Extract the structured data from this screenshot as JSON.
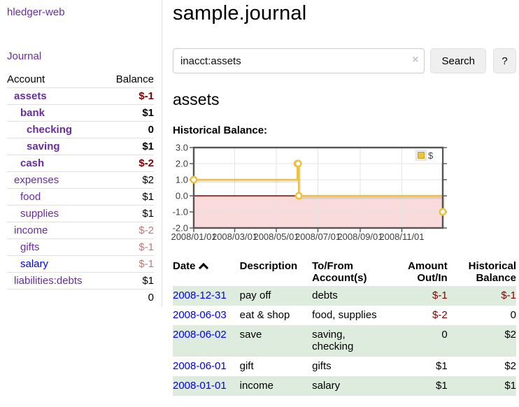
{
  "app": {
    "brand": "hledger-web"
  },
  "sidebar": {
    "journal_label": "Journal",
    "accounts_table": {
      "headers": [
        "Account",
        "Balance"
      ],
      "rows": [
        {
          "name": "assets",
          "balance": "$-1",
          "indent": 1,
          "bold": true,
          "balance_class": "neg"
        },
        {
          "name": "bank",
          "balance": "$1",
          "indent": 2,
          "bold": true,
          "balance_class": ""
        },
        {
          "name": "checking",
          "balance": "0",
          "indent": 3,
          "bold": true,
          "balance_class": ""
        },
        {
          "name": "saving",
          "balance": "$1",
          "indent": 3,
          "bold": true,
          "balance_class": ""
        },
        {
          "name": "cash",
          "balance": "$-2",
          "indent": 2,
          "bold": true,
          "balance_class": "neg"
        },
        {
          "name": "expenses",
          "balance": "$2",
          "indent": 1,
          "bold": false,
          "balance_class": ""
        },
        {
          "name": "food",
          "balance": "$1",
          "indent": 2,
          "bold": false,
          "balance_class": ""
        },
        {
          "name": "supplies",
          "balance": "$1",
          "indent": 2,
          "bold": false,
          "balance_class": ""
        },
        {
          "name": "income",
          "balance": "$-2",
          "indent": 1,
          "bold": false,
          "balance_class": "neg-muted"
        },
        {
          "name": "gifts",
          "balance": "$-1",
          "indent": 2,
          "bold": false,
          "balance_class": "neg-muted"
        },
        {
          "name": "salary",
          "balance": "$-1",
          "indent": 2,
          "bold": false,
          "balance_class": "neg-muted",
          "link_blue": true
        },
        {
          "name": "liabilities:debts",
          "balance": "$1",
          "indent": 1,
          "bold": false,
          "balance_class": ""
        }
      ],
      "total": "0"
    }
  },
  "main": {
    "title": "sample.journal",
    "search": {
      "value": "inacct:assets",
      "clear_icon": "×",
      "button_label": "Search",
      "help_label": "?"
    },
    "account_heading": "assets",
    "chart_label": "Historical Balance:"
  },
  "chart_data": {
    "type": "line",
    "step": true,
    "title": "Historical Balance",
    "series": [
      {
        "name": "$",
        "points": [
          [
            "2008-01-01",
            1
          ],
          [
            "2008-06-01",
            2
          ],
          [
            "2008-06-02",
            2
          ],
          [
            "2008-06-03",
            0
          ],
          [
            "2008-12-31",
            -1
          ]
        ]
      }
    ],
    "x_ticks": [
      "2008/01/01",
      "2008/03/01",
      "2008/05/01",
      "2008/07/01",
      "2008/09/01",
      "2008/11/01"
    ],
    "y_ticks": [
      "3.0",
      "2.0",
      "1.0",
      "0.0",
      "-1.0",
      "-2.0"
    ],
    "ylim": [
      -2,
      3
    ],
    "xlim_days": [
      0,
      365
    ],
    "legend": [
      "$"
    ],
    "legend_position": "top-right",
    "grid": true
  },
  "register": {
    "headers": [
      "Date",
      "Description",
      "To/From Account(s)",
      "Amount Out/In",
      "Historical Balance"
    ],
    "sort_icon": "chevron-up",
    "rows": [
      {
        "date": "2008-12-31",
        "description": "pay off",
        "accounts": "debts",
        "amount": "$-1",
        "amount_neg": true,
        "balance": "$-1",
        "balance_neg": true
      },
      {
        "date": "2008-06-03",
        "description": "eat & shop",
        "accounts": "food, supplies",
        "amount": "$-2",
        "amount_neg": true,
        "balance": "0",
        "balance_neg": false
      },
      {
        "date": "2008-06-02",
        "description": "save",
        "accounts": "saving, checking",
        "amount": "0",
        "amount_neg": false,
        "balance": "$2",
        "balance_neg": false
      },
      {
        "date": "2008-06-01",
        "description": "gift",
        "accounts": "gifts",
        "amount": "$1",
        "amount_neg": false,
        "balance": "$2",
        "balance_neg": false
      },
      {
        "date": "2008-01-01",
        "description": "income",
        "accounts": "salary",
        "amount": "$1",
        "amount_neg": false,
        "balance": "$1",
        "balance_neg": false
      }
    ]
  },
  "colors": {
    "accent_purple": "#6a2ca0",
    "link_blue": "#0000ee",
    "negative_red": "#800000",
    "muted_negative_red": "#b97a7a",
    "row_stripe_green": "#deecde",
    "chart_line": "#edc240",
    "chart_negative_fill": "#f9d7d7",
    "chart_zero_line": "#800000",
    "chart_border": "#545454",
    "chart_grid": "#e3e3e3"
  }
}
